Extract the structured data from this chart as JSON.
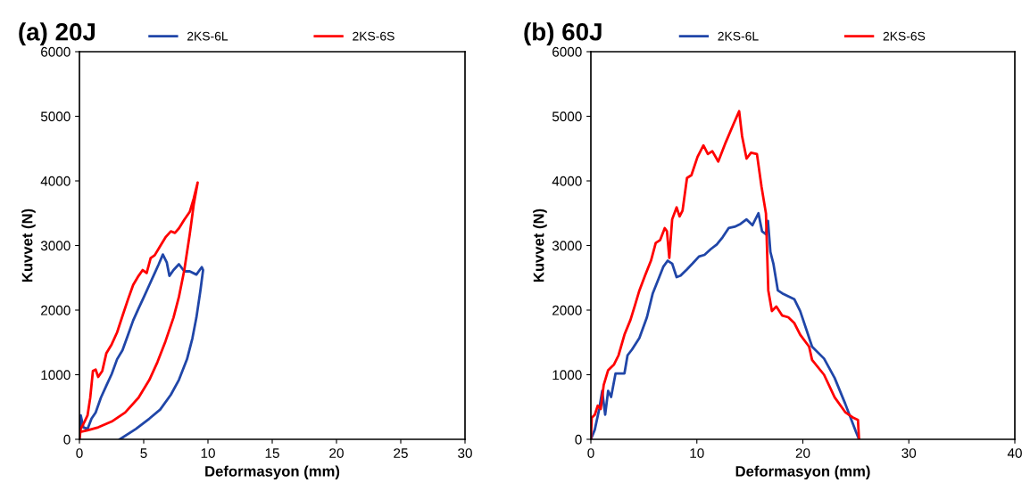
{
  "chart_data": [
    {
      "type": "line",
      "title": "(a) 20J",
      "xlabel": "Deformasyon (mm)",
      "ylabel": "Kuvvet (N)",
      "xlim": [
        0,
        30
      ],
      "xticks": [
        0,
        5,
        10,
        15,
        20,
        25,
        30
      ],
      "ylim": [
        0,
        6000
      ],
      "yticks": [
        0,
        1000,
        2000,
        3000,
        4000,
        5000,
        6000
      ],
      "grid": false,
      "legend": "top",
      "marker": "none",
      "line_style": "solid",
      "series": [
        {
          "name": "2KS-6L",
          "color": "#2046a8",
          "x": [
            0,
            0.1,
            0.31,
            0.63,
            0.94,
            1.26,
            1.67,
            2.09,
            2.51,
            2.93,
            3.35,
            3.77,
            4.18,
            4.6,
            5.02,
            5.44,
            5.86,
            6.17,
            6.49,
            6.8,
            7.0,
            7.32,
            7.74,
            8.16,
            8.58,
            9.1,
            9.52,
            9.62,
            9.41,
            9.1,
            8.79,
            8.37,
            7.74,
            7.11,
            6.28,
            5.44,
            4.39,
            3.14
          ],
          "values": [
            0,
            370,
            185,
            160,
            320,
            415,
            645,
            830,
            1010,
            1240,
            1380,
            1610,
            1840,
            2025,
            2205,
            2390,
            2575,
            2710,
            2860,
            2735,
            2530,
            2620,
            2710,
            2600,
            2600,
            2550,
            2665,
            2620,
            2300,
            1885,
            1565,
            1240,
            920,
            690,
            460,
            320,
            160,
            0
          ]
        },
        {
          "name": "2KS-6S",
          "color": "#ff0000",
          "x": [
            0,
            0.1,
            0.4,
            0.63,
            0.84,
            1.05,
            1.26,
            1.46,
            1.78,
            2.09,
            2.51,
            2.93,
            3.35,
            3.77,
            4.18,
            4.6,
            4.92,
            5.23,
            5.54,
            5.86,
            6.28,
            6.69,
            7.11,
            7.43,
            7.74,
            8.16,
            8.58,
            8.89,
            9.2,
            8.89,
            8.58,
            8.16,
            7.74,
            7.32,
            6.69,
            6.07,
            5.44,
            4.6,
            3.56,
            2.51,
            1.46,
            0.63,
            0.1
          ],
          "values": [
            0,
            160,
            275,
            370,
            645,
            1060,
            1080,
            965,
            1060,
            1330,
            1470,
            1655,
            1910,
            2160,
            2390,
            2530,
            2620,
            2575,
            2805,
            2850,
            2990,
            3125,
            3220,
            3195,
            3265,
            3400,
            3520,
            3725,
            3975,
            3630,
            3170,
            2620,
            2205,
            1885,
            1515,
            1195,
            920,
            645,
            415,
            275,
            185,
            140,
            115
          ]
        }
      ]
    },
    {
      "type": "line",
      "title": "(b) 60J",
      "xlabel": "Deformasyon (mm)",
      "ylabel": "Kuvvet (N)",
      "xlim": [
        0,
        40
      ],
      "xticks": [
        0,
        10,
        20,
        30,
        40
      ],
      "ylim": [
        0,
        6000
      ],
      "yticks": [
        0,
        1000,
        2000,
        3000,
        4000,
        5000,
        6000
      ],
      "grid": false,
      "legend": "top",
      "marker": "none",
      "line_style": "solid",
      "series": [
        {
          "name": "2KS-6L",
          "color": "#2046a8",
          "x": [
            0,
            0.37,
            0.79,
            1.07,
            1.35,
            1.63,
            1.91,
            2.33,
            2.75,
            3.17,
            3.46,
            3.88,
            4.58,
            5.29,
            5.84,
            6.4,
            6.83,
            7.25,
            7.67,
            8.09,
            8.47,
            9.03,
            9.59,
            10.2,
            10.72,
            11.32,
            11.88,
            12.44,
            13.0,
            13.57,
            14.13,
            14.69,
            15.25,
            15.81,
            16.15,
            16.52,
            16.71,
            16.94,
            17.22,
            17.64,
            18.06,
            18.62,
            19.19,
            19.75,
            20.31,
            20.87,
            22,
            23,
            24,
            25,
            25.3
          ],
          "values": [
            0,
            150,
            470,
            750,
            380,
            750,
            655,
            1020,
            1020,
            1020,
            1300,
            1390,
            1570,
            1890,
            2260,
            2490,
            2670,
            2765,
            2720,
            2510,
            2535,
            2625,
            2720,
            2830,
            2855,
            2945,
            3015,
            3130,
            3270,
            3290,
            3335,
            3405,
            3315,
            3500,
            3220,
            3175,
            3380,
            2900,
            2720,
            2305,
            2260,
            2215,
            2170,
            1985,
            1710,
            1435,
            1250,
            950,
            550,
            120,
            0
          ]
        },
        {
          "name": "2KS-6S",
          "color": "#ff0000",
          "x": [
            0,
            0.08,
            0.37,
            0.65,
            0.93,
            1.21,
            1.63,
            2.19,
            2.61,
            3.17,
            3.74,
            4.16,
            4.58,
            5.11,
            5.67,
            6.12,
            6.54,
            6.97,
            7.18,
            7.4,
            7.67,
            8.09,
            8.37,
            8.65,
            9.07,
            9.49,
            10.06,
            10.62,
            11.04,
            11.46,
            12.02,
            12.72,
            13.43,
            13.99,
            14.27,
            14.69,
            15.11,
            15.67,
            16.1,
            16.52,
            16.74,
            17.08,
            17.5,
            18.06,
            18.62,
            19.19,
            19.75,
            20.59,
            20.87,
            22,
            23,
            24,
            24.8,
            25.2,
            25.3
          ],
          "values": [
            0,
            335,
            380,
            520,
            470,
            840,
            1070,
            1160,
            1300,
            1620,
            1850,
            2075,
            2305,
            2535,
            2765,
            3040,
            3085,
            3270,
            3220,
            2810,
            3405,
            3590,
            3450,
            3540,
            4045,
            4090,
            4370,
            4550,
            4415,
            4460,
            4300,
            4595,
            4870,
            5080,
            4690,
            4345,
            4435,
            4415,
            3910,
            3495,
            2305,
            1985,
            2055,
            1915,
            1890,
            1800,
            1620,
            1435,
            1230,
            1000,
            650,
            420,
            330,
            300,
            0
          ]
        }
      ]
    }
  ]
}
